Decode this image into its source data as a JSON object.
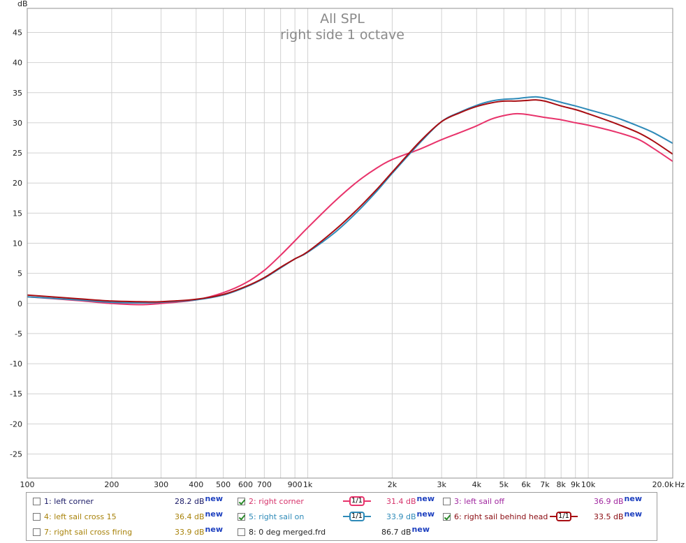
{
  "chart_data": {
    "type": "line",
    "title": "All SPL",
    "subtitle": "right side 1 octave",
    "ylabel": "dB",
    "xlabel": "Hz",
    "x_scale": "log",
    "xlim": [
      100,
      20000
    ],
    "ylim": [
      -29,
      49
    ],
    "y_ticks": [
      45,
      40,
      35,
      30,
      25,
      20,
      15,
      10,
      5,
      0,
      -5,
      -10,
      -15,
      -20,
      -25
    ],
    "y_tick_labels": [
      "45",
      "40",
      "35",
      "30",
      "25",
      "20",
      "15",
      "10",
      "5",
      "0",
      "-5",
      "-10",
      "-15",
      "-20",
      "-25"
    ],
    "x_ticks": [
      100,
      200,
      300,
      400,
      500,
      600,
      700,
      900,
      1000,
      2000,
      3000,
      4000,
      5000,
      6000,
      7000,
      8000,
      9000,
      10000,
      20000
    ],
    "x_tick_labels": [
      "100",
      "200",
      "300",
      "400",
      "500",
      "600",
      "700",
      "900",
      "1k",
      "2k",
      "3k",
      "4k",
      "5k",
      "6k",
      "7k",
      "8k",
      "9k",
      "10k",
      "20.0k"
    ],
    "x_minor_grid": [
      800
    ],
    "grid": true,
    "series": [
      {
        "name": "2: right corner",
        "color": "#e8336b",
        "points": [
          [
            100,
            1.1
          ],
          [
            150,
            0.5
          ],
          [
            200,
            0.0
          ],
          [
            250,
            -0.2
          ],
          [
            300,
            0.0
          ],
          [
            400,
            0.6
          ],
          [
            500,
            1.8
          ],
          [
            600,
            3.4
          ],
          [
            700,
            5.5
          ],
          [
            800,
            8.0
          ],
          [
            900,
            10.4
          ],
          [
            1000,
            12.6
          ],
          [
            1250,
            17.0
          ],
          [
            1500,
            20.2
          ],
          [
            1750,
            22.4
          ],
          [
            2000,
            23.9
          ],
          [
            2500,
            25.6
          ],
          [
            3000,
            27.2
          ],
          [
            3500,
            28.4
          ],
          [
            4000,
            29.5
          ],
          [
            4500,
            30.6
          ],
          [
            5000,
            31.2
          ],
          [
            5500,
            31.5
          ],
          [
            6000,
            31.4
          ],
          [
            7000,
            30.9
          ],
          [
            8000,
            30.5
          ],
          [
            9000,
            30.0
          ],
          [
            10000,
            29.6
          ],
          [
            12500,
            28.5
          ],
          [
            15000,
            27.3
          ],
          [
            17000,
            25.8
          ],
          [
            20000,
            23.6
          ]
        ]
      },
      {
        "name": "5: right sail on",
        "color": "#2e8ab8",
        "points": [
          [
            100,
            1.1
          ],
          [
            150,
            0.6
          ],
          [
            200,
            0.2
          ],
          [
            250,
            0.1
          ],
          [
            300,
            0.2
          ],
          [
            400,
            0.6
          ],
          [
            500,
            1.4
          ],
          [
            600,
            2.7
          ],
          [
            700,
            4.2
          ],
          [
            800,
            5.9
          ],
          [
            900,
            7.4
          ],
          [
            1000,
            8.5
          ],
          [
            1250,
            11.8
          ],
          [
            1500,
            15.2
          ],
          [
            1750,
            18.5
          ],
          [
            2000,
            21.6
          ],
          [
            2500,
            26.6
          ],
          [
            3000,
            30.2
          ],
          [
            3500,
            31.8
          ],
          [
            4000,
            32.9
          ],
          [
            4500,
            33.6
          ],
          [
            5000,
            33.9
          ],
          [
            5500,
            34.0
          ],
          [
            6000,
            34.2
          ],
          [
            6500,
            34.3
          ],
          [
            7000,
            34.1
          ],
          [
            8000,
            33.4
          ],
          [
            9000,
            32.8
          ],
          [
            10000,
            32.2
          ],
          [
            12500,
            30.9
          ],
          [
            15000,
            29.5
          ],
          [
            17000,
            28.4
          ],
          [
            20000,
            26.6
          ]
        ]
      },
      {
        "name": "6: right sail behind head",
        "color": "#a80d12",
        "points": [
          [
            100,
            1.4
          ],
          [
            150,
            0.8
          ],
          [
            200,
            0.4
          ],
          [
            250,
            0.3
          ],
          [
            300,
            0.3
          ],
          [
            400,
            0.7
          ],
          [
            500,
            1.5
          ],
          [
            600,
            2.8
          ],
          [
            700,
            4.3
          ],
          [
            800,
            6.0
          ],
          [
            900,
            7.4
          ],
          [
            1000,
            8.6
          ],
          [
            1250,
            12.2
          ],
          [
            1500,
            15.6
          ],
          [
            1750,
            18.8
          ],
          [
            2000,
            21.8
          ],
          [
            2500,
            26.8
          ],
          [
            3000,
            30.2
          ],
          [
            3500,
            31.7
          ],
          [
            4000,
            32.7
          ],
          [
            4500,
            33.3
          ],
          [
            5000,
            33.6
          ],
          [
            5500,
            33.6
          ],
          [
            6000,
            33.7
          ],
          [
            6500,
            33.8
          ],
          [
            7000,
            33.6
          ],
          [
            8000,
            32.8
          ],
          [
            9000,
            32.2
          ],
          [
            10000,
            31.5
          ],
          [
            12500,
            29.9
          ],
          [
            15000,
            28.4
          ],
          [
            17000,
            27.0
          ],
          [
            20000,
            24.8
          ]
        ]
      }
    ]
  },
  "legend": {
    "unit_suffix": "dB",
    "new_tag": "new",
    "smooth_label": "1/1",
    "entries": [
      {
        "label": "1: left corner",
        "value": "28.2",
        "checked": false,
        "color": "#1a1a66",
        "value_color": "#1a1a66",
        "smooth": false
      },
      {
        "label": "2: right corner",
        "value": "31.4",
        "checked": true,
        "color": "#d6336b",
        "value_color": "#d6336b",
        "smooth": true,
        "smooth_color": "#e8336b"
      },
      {
        "label": "3: left sail off",
        "value": "36.9",
        "checked": false,
        "color": "#a0269f",
        "value_color": "#a0269f",
        "smooth": false
      },
      {
        "label": "4: left sail cross 15",
        "value": "36.4",
        "checked": false,
        "color": "#a8820a",
        "value_color": "#a8820a",
        "smooth": false
      },
      {
        "label": "5: right sail on",
        "value": "33.9",
        "checked": true,
        "color": "#2e8ab8",
        "value_color": "#2e8ab8",
        "smooth": true,
        "smooth_color": "#2e8ab8"
      },
      {
        "label": "6: right sail behind head",
        "value": "33.5",
        "checked": true,
        "color": "#8a0a10",
        "value_color": "#8a0a10",
        "smooth": true,
        "smooth_color": "#a80d12"
      },
      {
        "label": "7: right sail cross firing",
        "value": "33.9",
        "checked": false,
        "color": "#a8820a",
        "value_color": "#a8820a",
        "smooth": false
      },
      {
        "label": "8: 0 deg merged.frd",
        "value": "86.7",
        "checked": false,
        "color": "#222222",
        "value_color": "#222222",
        "smooth": false
      }
    ]
  }
}
